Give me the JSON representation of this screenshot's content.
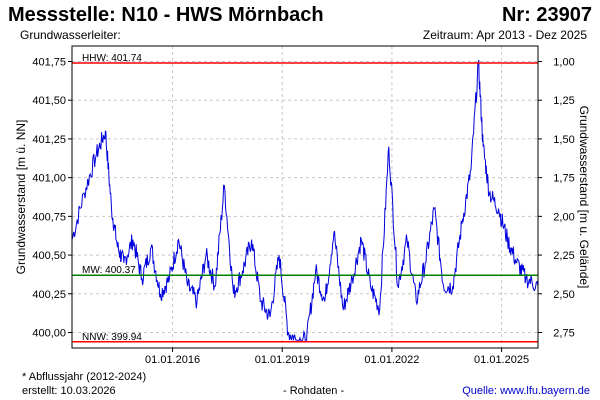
{
  "header": {
    "station": "Messstelle: N10 - HWS Mörnbach",
    "number": "Nr: 23907",
    "aquifer": "Grundwasserleiter:",
    "period": "Zeitraum: Apr 2013 - Dez 2025"
  },
  "footer": {
    "note": "* Abflussjahr (2012-2024)",
    "created": "erstellt:  10.03.2026",
    "raw": "- Rohdaten -",
    "source": "Quelle: www.lfu.bayern.de"
  },
  "colors": {
    "series": "#0000dd",
    "hhw": "#ff0000",
    "nnw": "#ff0000",
    "mw": "#008000",
    "grid": "#c8c8c8"
  },
  "chart_data": {
    "type": "line",
    "ylabel_left": "Grundwasserstand [m ü. NN]",
    "ylabel_right": "Grundwasserstand [m u. Gelände]",
    "ylim": [
      399.9,
      401.85
    ],
    "right_axis_offset": 402.74,
    "y_ticks": [
      "400,00",
      "400,25",
      "400,50",
      "400,75",
      "401,00",
      "401,25",
      "401,50",
      "401,75"
    ],
    "y_tick_values": [
      400.0,
      400.25,
      400.5,
      400.75,
      401.0,
      401.25,
      401.5,
      401.75
    ],
    "y2_ticks": [
      "2,75",
      "2,50",
      "2,25",
      "2,00",
      "1,75",
      "1,50",
      "1,25",
      "1,00"
    ],
    "x_range": [
      "2013-04-01",
      "2025-12-31"
    ],
    "x_ticks": [
      "01.01.2016",
      "01.01.2019",
      "01.01.2022",
      "01.01.2025"
    ],
    "x_tick_dates": [
      "2016-01-01",
      "2019-01-01",
      "2022-01-01",
      "2025-01-01"
    ],
    "reference_lines": [
      {
        "label": "HHW: 401.74",
        "value": 401.74
      },
      {
        "label": "MW: 400.37",
        "value": 400.37
      },
      {
        "label": "NNW: 399.94",
        "value": 399.94
      }
    ],
    "series": [
      {
        "x": [
          "2013-04-01",
          "2013-08-01",
          "2013-12-01",
          "2014-03-01",
          "2014-05-01",
          "2014-07-01",
          "2014-09-01",
          "2014-12-01",
          "2015-03-01",
          "2015-06-01",
          "2015-09-01",
          "2015-12-01",
          "2016-03-01",
          "2016-06-01",
          "2016-09-01",
          "2016-12-01",
          "2017-03-01",
          "2017-06-01",
          "2017-09-01",
          "2017-12-01",
          "2018-03-01",
          "2018-06-01",
          "2018-09-01",
          "2018-12-01",
          "2019-03-01",
          "2019-06-01",
          "2019-09-01",
          "2019-12-01",
          "2020-03-01",
          "2020-06-01",
          "2020-09-01",
          "2020-12-01",
          "2021-03-01",
          "2021-06-01",
          "2021-09-01",
          "2021-12-01",
          "2022-03-01",
          "2022-06-01",
          "2022-09-01",
          "2022-12-01",
          "2023-03-01",
          "2023-06-01",
          "2023-09-01",
          "2023-12-01",
          "2024-03-01",
          "2024-05-15",
          "2024-07-01",
          "2024-09-01",
          "2024-12-01",
          "2025-03-01",
          "2025-06-01",
          "2025-09-01",
          "2025-12-31"
        ],
        "values": [
          400.6,
          400.9,
          401.15,
          401.3,
          400.8,
          400.55,
          400.45,
          400.6,
          400.35,
          400.55,
          400.25,
          400.35,
          400.6,
          400.3,
          400.2,
          400.5,
          400.3,
          400.95,
          400.25,
          400.4,
          400.6,
          400.2,
          400.1,
          400.5,
          400.0,
          399.95,
          399.95,
          400.4,
          400.2,
          400.65,
          400.15,
          400.35,
          400.6,
          400.3,
          400.15,
          401.2,
          400.3,
          400.6,
          400.2,
          400.45,
          400.8,
          400.3,
          400.3,
          400.7,
          401.05,
          401.74,
          401.2,
          400.9,
          400.8,
          400.6,
          400.45,
          400.35,
          400.3
        ]
      }
    ]
  }
}
